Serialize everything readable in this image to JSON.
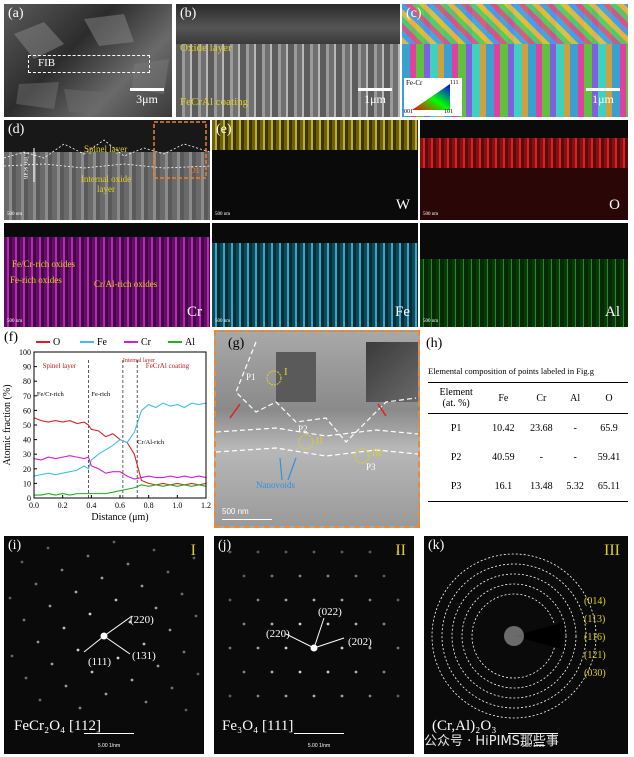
{
  "panels": {
    "a": {
      "label": "(a)",
      "fib": "FIB",
      "scale": "3μm"
    },
    "b": {
      "label": "(b)",
      "oxide": "Oxide layer",
      "coating": "FeCrAl coating",
      "scale": "1μm"
    },
    "c": {
      "label": "(c)",
      "legend_title": "Fe-Cr",
      "c001": "001",
      "c101": "101",
      "c111": "111",
      "scale": "1μm"
    },
    "d": {
      "label": "(d)",
      "spinel": "Spinel layer",
      "internal": "Internal oxide layer",
      "line_scan": "Line scan",
      "d1": "D1",
      "scale": "500 nm"
    },
    "e": {
      "label": "(e)",
      "element": "W",
      "scale": "500 nm"
    },
    "o": {
      "element": "O",
      "scale": "500 nm"
    },
    "cr": {
      "element": "Cr",
      "fecr": "Fe/Cr-rich oxides",
      "ferich": "Fe-rich oxides",
      "cral": "Cr/Al-rich oxides",
      "scale": "500 nm"
    },
    "fe": {
      "element": "Fe",
      "scale": "500 nm"
    },
    "al": {
      "element": "Al",
      "scale": "500 nm"
    },
    "f": {
      "label": "(f)"
    },
    "g": {
      "label": "(g)",
      "p1": "P1",
      "p2": "P2",
      "p3": "P3",
      "r1": "I",
      "r2": "II",
      "r3": "III",
      "nano": "Nanovoids",
      "scale": "500 nm"
    },
    "h": {
      "label": "(h)",
      "caption": "Elemental composition of points labeled in Fig.g"
    },
    "i": {
      "label": "(i)",
      "roman": "I",
      "phase": "FeCr₂O₄  [112]",
      "s1": "(220)",
      "s2": "(111)",
      "s3": "(131)",
      "scale": "5.00 1/nm"
    },
    "j": {
      "label": "(j)",
      "roman": "II",
      "phase": "Fe₃O₄  [111]",
      "s1": "(022)",
      "s2": "(220)",
      "s3": "(202)",
      "scale": "5.00 1/nm"
    },
    "k": {
      "label": "(k)",
      "roman": "III",
      "phase": "(Cr,Al)₂O₃",
      "rings": [
        "(014)",
        "(113)",
        "(116)",
        "(121)",
        "(030)"
      ],
      "scale": "5.00 1/nm"
    }
  },
  "watermark": "公众号 · HiPIMS那些事",
  "table": {
    "header_element": "Element",
    "header_unit": "(at. %)",
    "columns": [
      "Fe",
      "Cr",
      "Al",
      "O"
    ],
    "rows": [
      {
        "point": "P1",
        "values": [
          "10.42",
          "23.68",
          "-",
          "65.9"
        ]
      },
      {
        "point": "P2",
        "values": [
          "40.59",
          "-",
          "-",
          "59.41"
        ]
      },
      {
        "point": "P3",
        "values": [
          "16.1",
          "13.48",
          "5.32",
          "65.11"
        ]
      }
    ]
  },
  "chart_data": {
    "type": "line",
    "xlabel": "Distance (μm)",
    "ylabel": "Atomic fraction (%)",
    "xlim": [
      0.0,
      1.2
    ],
    "ylim": [
      0,
      100
    ],
    "xticks": [
      "0.0",
      "0.2",
      "0.4",
      "0.6",
      "0.8",
      "1.0",
      "1.2"
    ],
    "yticks": [
      "0",
      "10",
      "20",
      "30",
      "40",
      "50",
      "60",
      "70",
      "80",
      "90",
      "100"
    ],
    "legend_position": "top",
    "series": [
      {
        "name": "O",
        "color": "#e02020",
        "x": [
          0.0,
          0.05,
          0.1,
          0.15,
          0.2,
          0.25,
          0.3,
          0.35,
          0.38,
          0.4,
          0.45,
          0.5,
          0.55,
          0.6,
          0.65,
          0.7,
          0.75,
          0.8,
          0.85,
          0.9,
          0.95,
          1.0,
          1.05,
          1.1,
          1.15,
          1.2
        ],
        "y": [
          55,
          53,
          52,
          53,
          52,
          53,
          51,
          52,
          50,
          47,
          46,
          42,
          44,
          40,
          38,
          30,
          12,
          10,
          9,
          10,
          9,
          10,
          9,
          10,
          9,
          10
        ]
      },
      {
        "name": "Fe",
        "color": "#40c0e0",
        "x": [
          0.0,
          0.05,
          0.1,
          0.15,
          0.2,
          0.25,
          0.3,
          0.35,
          0.38,
          0.4,
          0.45,
          0.5,
          0.55,
          0.6,
          0.65,
          0.7,
          0.75,
          0.8,
          0.85,
          0.9,
          0.95,
          1.0,
          1.05,
          1.1,
          1.15,
          1.2
        ],
        "y": [
          15,
          16,
          17,
          16,
          17,
          18,
          19,
          22,
          20,
          26,
          30,
          33,
          36,
          40,
          38,
          45,
          60,
          64,
          62,
          65,
          63,
          64,
          62,
          65,
          64,
          65
        ]
      },
      {
        "name": "Cr",
        "color": "#d020d0",
        "x": [
          0.0,
          0.05,
          0.1,
          0.15,
          0.2,
          0.25,
          0.3,
          0.35,
          0.38,
          0.4,
          0.45,
          0.5,
          0.55,
          0.6,
          0.65,
          0.7,
          0.75,
          0.8,
          0.85,
          0.9,
          0.95,
          1.0,
          1.05,
          1.1,
          1.15,
          1.2
        ],
        "y": [
          27,
          26,
          28,
          27,
          28,
          29,
          28,
          27,
          28,
          22,
          20,
          17,
          18,
          18,
          15,
          13,
          14,
          15,
          14,
          14,
          15,
          14,
          15,
          14,
          15,
          14
        ]
      },
      {
        "name": "Al",
        "color": "#20b020",
        "x": [
          0.0,
          0.05,
          0.1,
          0.15,
          0.2,
          0.25,
          0.3,
          0.35,
          0.38,
          0.4,
          0.45,
          0.5,
          0.55,
          0.6,
          0.65,
          0.7,
          0.75,
          0.8,
          0.85,
          0.9,
          0.95,
          1.0,
          1.05,
          1.1,
          1.15,
          1.2
        ],
        "y": [
          2,
          2,
          3,
          2,
          3,
          2,
          3,
          3,
          3,
          3,
          3,
          3,
          4,
          5,
          6,
          7,
          9,
          8,
          9,
          8,
          9,
          8,
          9,
          8,
          9,
          8
        ]
      }
    ],
    "annotations": {
      "spinel": "Spinel layer",
      "internal": "Internal layer",
      "fecral": "FeCrAl coating",
      "fecr_rich": "Fe/Cr-rich",
      "fe_rich": "Fe-rich",
      "cral_rich": "Cr/Al-rich"
    }
  }
}
